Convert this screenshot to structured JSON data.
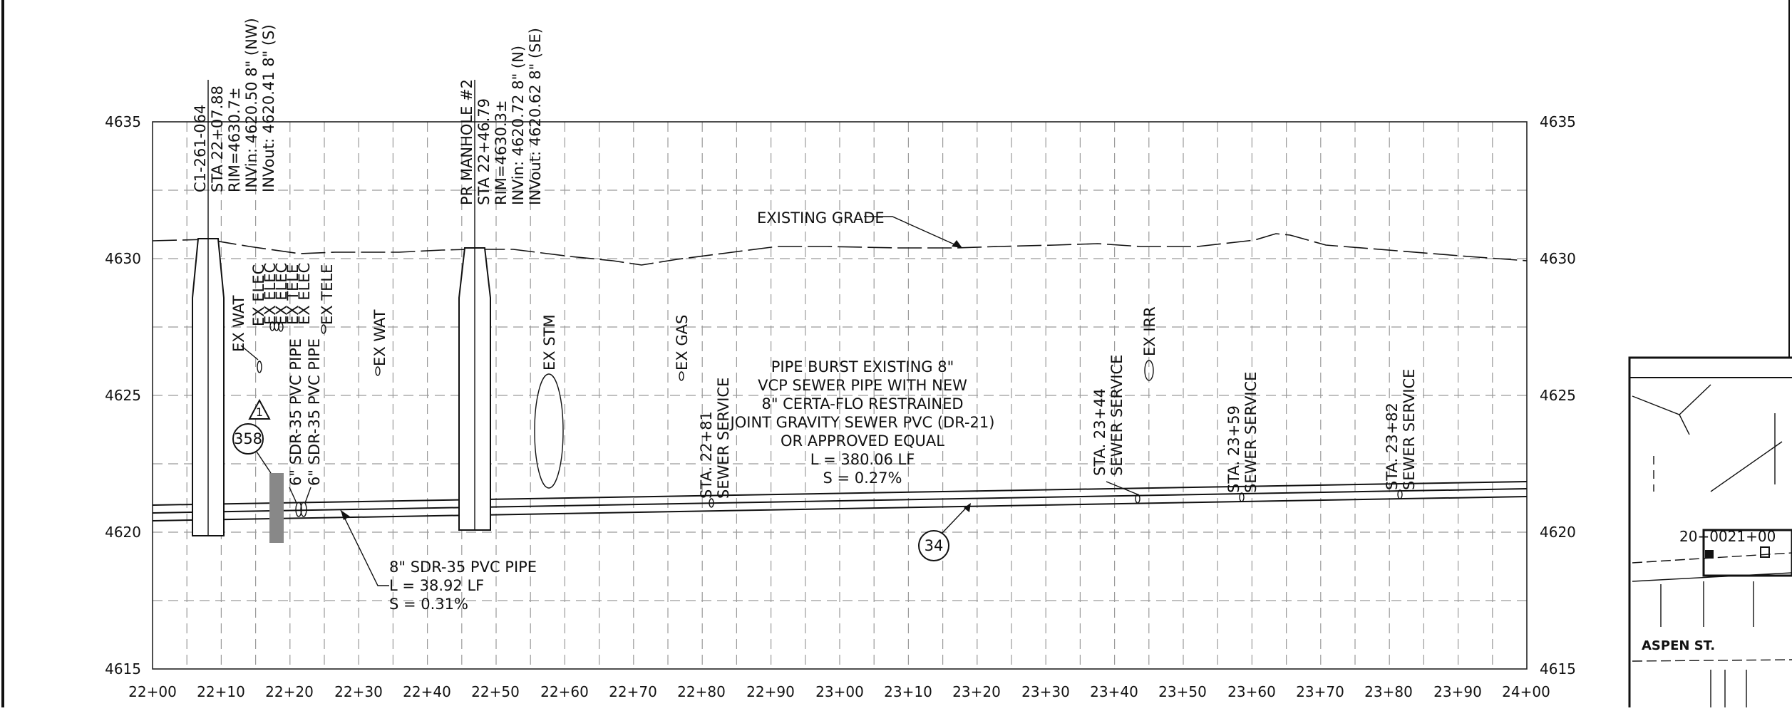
{
  "profile": {
    "elevations": [
      "4635",
      "4630",
      "4625",
      "4620",
      "4615"
    ],
    "stations": [
      "22+00",
      "22+10",
      "22+20",
      "22+30",
      "22+40",
      "22+50",
      "22+60",
      "22+70",
      "22+80",
      "22+90",
      "23+00",
      "23+10",
      "23+20",
      "23+30",
      "23+40",
      "23+50",
      "23+60",
      "23+70",
      "23+80",
      "23+90",
      "24+00"
    ],
    "existing_grade_label": "EXISTING GRADE"
  },
  "structures": {
    "mh1": {
      "lines": [
        "C1-261-064",
        "STA 22+07.88",
        "RIM=4630.7±",
        "INVin: 4620.50  8\" (NW)",
        "INVout: 4620.41  8\" (S)"
      ]
    },
    "mh2": {
      "lines": [
        "PR MANHOLE #2",
        "STA 22+46.79",
        "RIM=4630.3±",
        "INVin: 4620.72  8\" (N)",
        "INVout: 4620.62  8\" (SE)"
      ]
    }
  },
  "utilities": {
    "ex_wat_1": "EX WAT",
    "ex_elec_1": "EX ELEC",
    "ex_elec_2": "EX ELEC",
    "ex_elec_3": "EX ELEC",
    "ex_tele_1": "EX TELE",
    "ex_elec_4": "EX ELEC",
    "ex_tele_2": "EX TELE",
    "ex_wat_2": "EX WAT",
    "ex_stm": "EX STM",
    "ex_gas": "EX GAS",
    "ex_irr": "EX IRR",
    "pvc_6_a": "6\" SDR-35 PVC PIPE",
    "pvc_6_b": "6\" SDR-35 PVC PIPE"
  },
  "services": [
    {
      "sta": "STA. 22+81",
      "text": "SEWER SERVICE"
    },
    {
      "sta": "STA. 23+44",
      "text": "SEWER SERVICE"
    },
    {
      "sta": "STA. 23+59",
      "text": "SEWER SERVICE"
    },
    {
      "sta": "STA. 23+82",
      "text": "SEWER SERVICE"
    }
  ],
  "notes": {
    "pipe_burst": [
      "PIPE BURST EXISTING 8\"",
      "VCP SEWER PIPE WITH NEW",
      "8\" CERTA-FLO RESTRAINED",
      "JOINT GRAVITY SEWER PVC (DR-21)",
      "OR APPROVED EQUAL",
      "L = 380.06 LF",
      "S = 0.27%"
    ],
    "pipe_8": [
      "8\" SDR-35 PVC PIPE",
      "L = 38.92 LF",
      "S = 0.31%"
    ]
  },
  "callouts": {
    "c358": "358",
    "c34": "34",
    "delta": "1"
  },
  "key_map": {
    "cutoff_stations": "20+0021+00",
    "street": "ASPEN ST."
  }
}
